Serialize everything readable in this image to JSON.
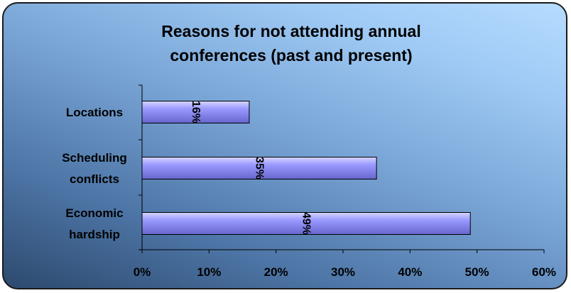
{
  "chart_data": {
    "type": "bar",
    "orientation": "horizontal",
    "title_lines": [
      "Reasons for not attending annual",
      "conferences (past and present)"
    ],
    "categories": [
      {
        "lines": [
          "Locations"
        ]
      },
      {
        "lines": [
          "Scheduling",
          "conflicts"
        ]
      },
      {
        "lines": [
          "Economic",
          "hardship"
        ]
      }
    ],
    "values": [
      16,
      35,
      49
    ],
    "data_labels": [
      "16%",
      "35%",
      "49%"
    ],
    "x_ticks": [
      "0%",
      "10%",
      "20%",
      "30%",
      "40%",
      "50%",
      "60%"
    ],
    "xlim": [
      0,
      60
    ],
    "grid": false,
    "legend": "none",
    "bar_color": "#9999ff",
    "bar_highlight": "#d6d6ff",
    "bar_shadow": "#6666cc"
  }
}
